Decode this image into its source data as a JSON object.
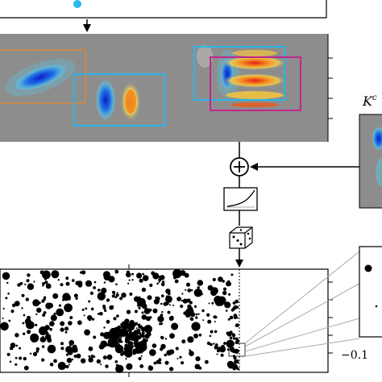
{
  "figure": {
    "kernel_label_base": "K",
    "kernel_label_sup": "c",
    "raster_tick_label": "−0.1",
    "colors": {
      "background_map": "#8d8d8d",
      "box_orange": "#d7863a",
      "box_cyan": "#2ab5ea",
      "box_magenta": "#c2268c",
      "input_dot": "#25b9ee",
      "arrow": "#000000"
    },
    "icons": {
      "sum_node": "circled-plus-icon",
      "nonlinearity": "exponential-curve-icon",
      "sampling": "dice-icon"
    }
  }
}
